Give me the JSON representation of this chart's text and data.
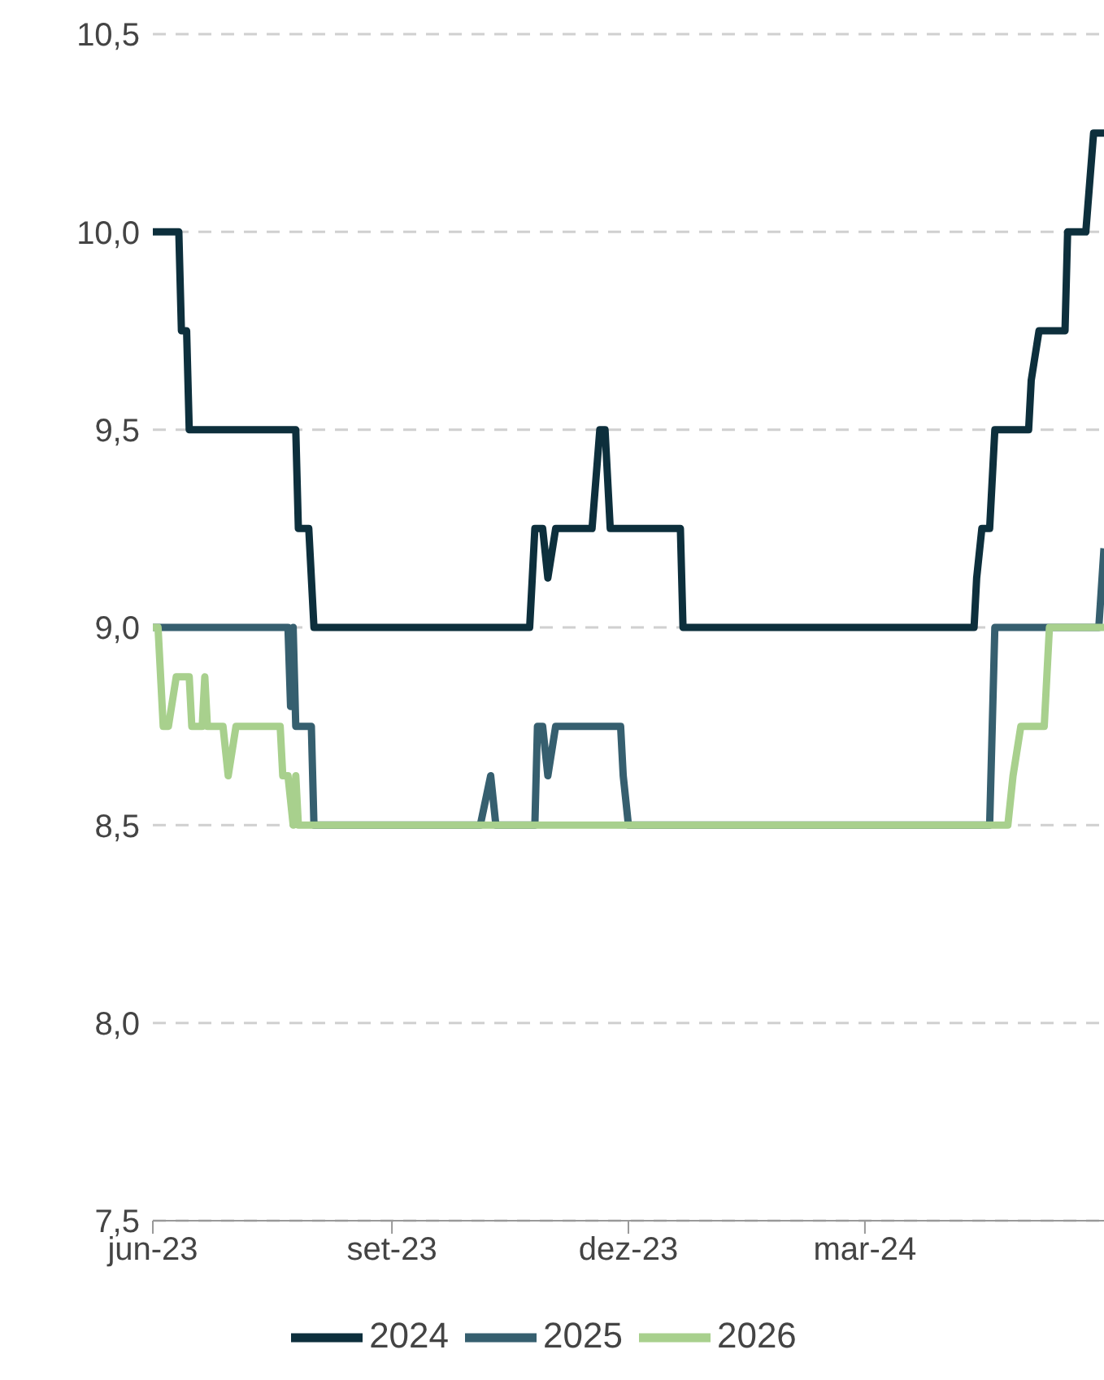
{
  "chart_data": {
    "type": "line",
    "xlim": [
      "2023-06-01",
      "2024-06-01"
    ],
    "xticks": [
      {
        "value": "2023-06-01",
        "label": "jun-23"
      },
      {
        "value": "2023-09-01",
        "label": "set-23"
      },
      {
        "value": "2023-12-01",
        "label": "dez-23"
      },
      {
        "value": "2024-03-01",
        "label": "mar-24"
      }
    ],
    "ylim": [
      7.5,
      10.5
    ],
    "yticks": [
      {
        "value": 7.5,
        "label": "7,5"
      },
      {
        "value": 8,
        "label": "8,0"
      },
      {
        "value": 8.5,
        "label": "8,5"
      },
      {
        "value": 9,
        "label": "9,0"
      },
      {
        "value": 9.5,
        "label": "9,5"
      },
      {
        "value": 10,
        "label": "10,0"
      },
      {
        "value": 10.5,
        "label": "10,5"
      }
    ],
    "grid": "y",
    "legend": "bottom",
    "marker": "none",
    "line_style": "solid",
    "series": [
      {
        "name": "2024",
        "color": "#0d2f3c",
        "x": [
          "2023-06-01",
          "2023-06-11",
          "2023-06-12",
          "2023-06-14",
          "2023-06-15",
          "2023-07-26",
          "2023-07-27",
          "2023-07-31",
          "2023-08-02",
          "2023-10-24",
          "2023-10-25",
          "2023-10-26",
          "2023-10-29",
          "2023-10-31",
          "2023-11-03",
          "2023-11-17",
          "2023-11-20",
          "2023-11-22",
          "2023-11-24",
          "2023-12-21",
          "2023-12-22",
          "2024-04-12",
          "2024-04-13",
          "2024-04-15",
          "2024-04-18",
          "2024-04-20",
          "2024-05-03",
          "2024-05-04",
          "2024-05-07",
          "2024-05-17",
          "2024-05-18",
          "2024-05-25",
          "2024-05-28",
          "2024-06-01"
        ],
        "values": [
          10,
          10,
          9.75,
          9.75,
          9.5,
          9.5,
          9.25,
          9.25,
          9,
          9,
          9.125,
          9.25,
          9.25,
          9.125,
          9.25,
          9.25,
          9.5,
          9.5,
          9.25,
          9.25,
          9,
          9,
          9.125,
          9.25,
          9.25,
          9.5,
          9.5,
          9.625,
          9.75,
          9.75,
          10,
          10,
          10.25,
          10.25
        ]
      },
      {
        "name": "2025",
        "color": "#365f6f",
        "x": [
          "2023-06-01",
          "2023-07-23",
          "2023-07-24",
          "2023-07-25",
          "2023-07-26",
          "2023-08-01",
          "2023-08-02",
          "2023-10-05",
          "2023-10-09",
          "2023-10-11",
          "2023-10-26",
          "2023-10-27",
          "2023-10-29",
          "2023-10-31",
          "2023-11-03",
          "2023-11-28",
          "2023-11-29",
          "2023-12-01",
          "2024-04-18",
          "2024-04-20",
          "2024-05-30",
          "2024-06-01"
        ],
        "values": [
          9,
          9,
          8.8,
          9,
          8.75,
          8.75,
          8.5,
          8.5,
          8.625,
          8.5,
          8.5,
          8.75,
          8.75,
          8.625,
          8.75,
          8.75,
          8.625,
          8.5,
          8.5,
          9,
          9,
          9.2
        ]
      },
      {
        "name": "2026",
        "color": "#a8d08d",
        "x": [
          "2023-06-01",
          "2023-06-03",
          "2023-06-05",
          "2023-06-07",
          "2023-06-10",
          "2023-06-15",
          "2023-06-16",
          "2023-06-20",
          "2023-06-21",
          "2023-06-22",
          "2023-06-28",
          "2023-06-30",
          "2023-07-03",
          "2023-07-20",
          "2023-07-21",
          "2023-07-23",
          "2023-07-25",
          "2023-07-26",
          "2023-07-27",
          "2024-04-25",
          "2024-04-27",
          "2024-04-30",
          "2024-05-09",
          "2024-05-10",
          "2024-05-11",
          "2024-06-01"
        ],
        "values": [
          9,
          9,
          8.75,
          8.75,
          8.875,
          8.875,
          8.75,
          8.75,
          8.875,
          8.75,
          8.75,
          8.625,
          8.75,
          8.75,
          8.625,
          8.625,
          8.5,
          8.625,
          8.5,
          8.5,
          8.625,
          8.75,
          8.75,
          8.875,
          9,
          9
        ]
      }
    ]
  }
}
